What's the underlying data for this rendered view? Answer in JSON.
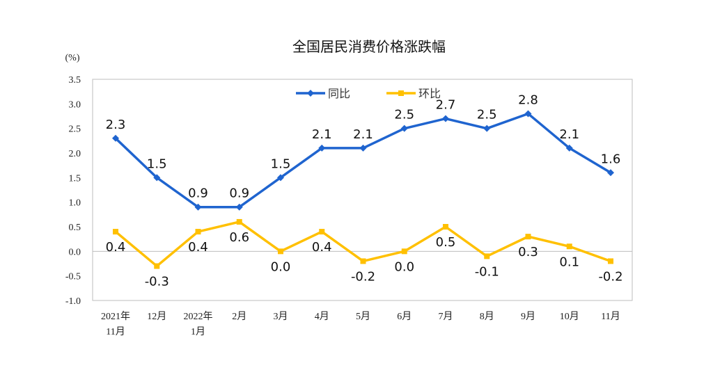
{
  "chart_data": {
    "type": "line",
    "title": "全国居民消费价格涨跌幅",
    "ylabel": "(%)",
    "xlabel": "",
    "ylim": [
      -1.0,
      3.5
    ],
    "yticks": [
      "3.5",
      "3.0",
      "2.5",
      "2.0",
      "1.5",
      "1.0",
      "0.5",
      "0.0",
      "-0.5",
      "-1.0"
    ],
    "categories": [
      [
        "2021年",
        "11月"
      ],
      [
        "12月"
      ],
      [
        "2022年",
        "1月"
      ],
      [
        "2月"
      ],
      [
        "3月"
      ],
      [
        "4月"
      ],
      [
        "5月"
      ],
      [
        "6月"
      ],
      [
        "7月"
      ],
      [
        "8月"
      ],
      [
        "9月"
      ],
      [
        "10月"
      ],
      [
        "11月"
      ]
    ],
    "legend": "top-center",
    "grid": false,
    "series": [
      {
        "name": "同比",
        "color": "#1f64cf",
        "marker": "diamond",
        "values": [
          2.3,
          1.5,
          0.9,
          0.9,
          1.5,
          2.1,
          2.1,
          2.5,
          2.7,
          2.5,
          2.8,
          2.1,
          1.6
        ]
      },
      {
        "name": "环比",
        "color": "#ffc000",
        "marker": "square",
        "values": [
          0.4,
          -0.3,
          0.4,
          0.6,
          0.0,
          0.4,
          -0.2,
          0.0,
          0.5,
          -0.1,
          0.3,
          0.1,
          -0.2
        ]
      }
    ]
  }
}
